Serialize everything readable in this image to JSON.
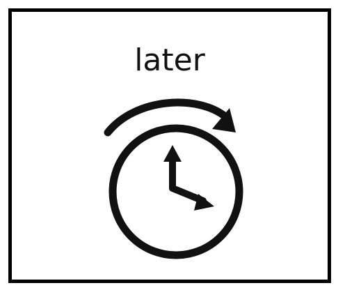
{
  "card": {
    "label": "later"
  },
  "icon": {
    "name": "clock-later-icon",
    "color": "#111111"
  }
}
